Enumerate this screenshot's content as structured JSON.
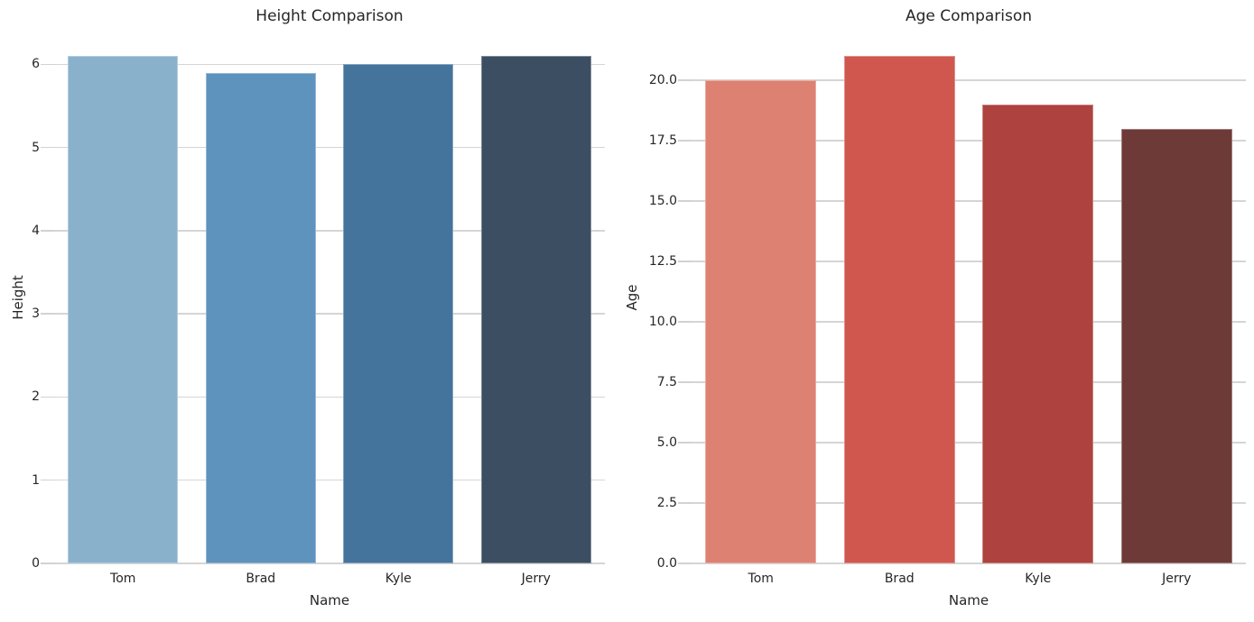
{
  "figure": {
    "background": "#ffffff",
    "grid_color": "#d5d5d5",
    "tick_color": "#d2d2d2",
    "text_color": "#262626"
  },
  "chart_data": [
    {
      "type": "bar",
      "title": "Height Comparison",
      "xlabel": "Name",
      "ylabel": "Height",
      "categories": [
        "Tom",
        "Brad",
        "Kyle",
        "Jerry"
      ],
      "values": [
        6.1,
        5.9,
        6.0,
        6.1
      ],
      "bar_colors": [
        "#8ab1cc",
        "#5d93bd",
        "#44739c",
        "#3b4e62"
      ],
      "yticks": [
        0,
        1,
        2,
        3,
        4,
        5,
        6
      ],
      "ytick_labels": [
        "0",
        "1",
        "2",
        "3",
        "4",
        "5",
        "6"
      ],
      "ylim": [
        0,
        6.405
      ],
      "grid": true,
      "legend_position": "none",
      "bar_width_fraction": 0.8
    },
    {
      "type": "bar",
      "title": "Age Comparison",
      "xlabel": "Name",
      "ylabel": "Age",
      "categories": [
        "Tom",
        "Brad",
        "Kyle",
        "Jerry"
      ],
      "values": [
        20,
        21,
        19,
        18
      ],
      "bar_colors": [
        "#dd8172",
        "#cf574d",
        "#ad423e",
        "#6d3a38"
      ],
      "yticks": [
        0,
        2.5,
        5,
        7.5,
        10,
        12.5,
        15,
        17.5,
        20
      ],
      "ytick_labels": [
        "0.0",
        "2.5",
        "5.0",
        "7.5",
        "10.0",
        "12.5",
        "15.0",
        "17.5",
        "20.0"
      ],
      "ylim": [
        0,
        22.05
      ],
      "grid": true,
      "legend_position": "none",
      "bar_width_fraction": 0.8
    }
  ]
}
